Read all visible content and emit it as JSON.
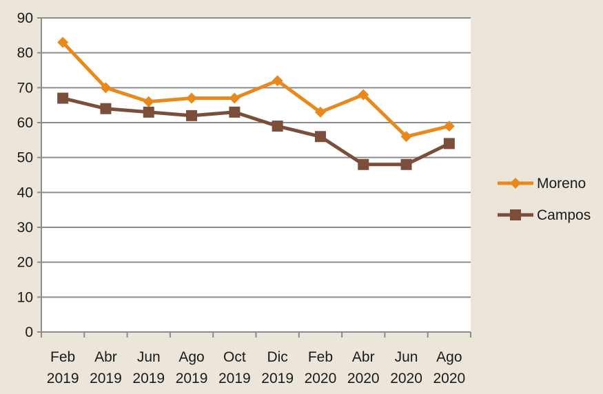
{
  "chart_data": {
    "type": "line",
    "categories": [
      "Feb 2019",
      "Abr 2019",
      "Jun 2019",
      "Ago 2019",
      "Oct 2019",
      "Dic 2019",
      "Feb 2020",
      "Abr 2020",
      "Jun 2020",
      "Ago 2020"
    ],
    "category_lines": [
      [
        "Feb",
        "2019"
      ],
      [
        "Abr",
        "2019"
      ],
      [
        "Jun",
        "2019"
      ],
      [
        "Ago",
        "2019"
      ],
      [
        "Oct",
        "2019"
      ],
      [
        "Dic",
        "2019"
      ],
      [
        "Feb",
        "2020"
      ],
      [
        "Abr",
        "2020"
      ],
      [
        "Jun",
        "2020"
      ],
      [
        "Ago",
        "2020"
      ]
    ],
    "series": [
      {
        "name": "Moreno",
        "values": [
          83,
          70,
          66,
          67,
          67,
          72,
          63,
          68,
          56,
          59
        ],
        "color": "#e8891e",
        "marker": "diamond"
      },
      {
        "name": "Campos",
        "values": [
          67,
          64,
          63,
          62,
          63,
          59,
          56,
          48,
          48,
          54
        ],
        "color": "#7a4e3a",
        "marker": "square"
      }
    ],
    "ylim": [
      0,
      90
    ],
    "yticks": [
      0,
      10,
      20,
      30,
      40,
      50,
      60,
      70,
      80,
      90
    ],
    "grid": true,
    "legend_position": "right",
    "title": "",
    "xlabel": "",
    "ylabel": ""
  }
}
